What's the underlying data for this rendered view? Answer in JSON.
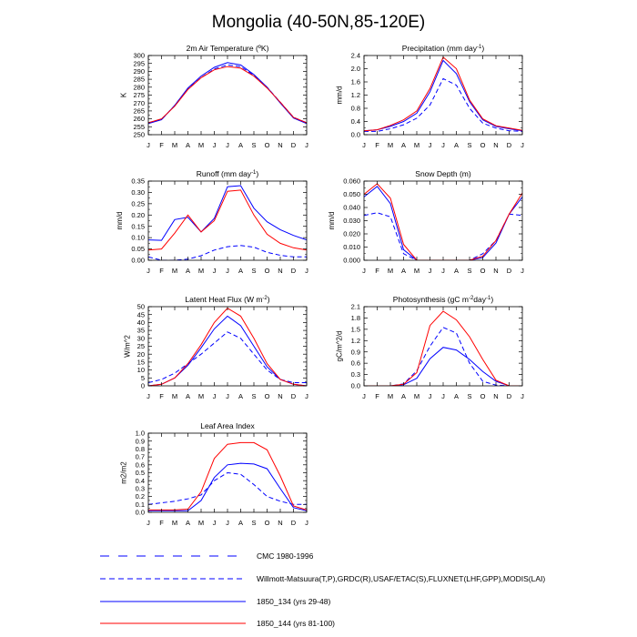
{
  "figure": {
    "title": "Mongolia (40-50N,85-120E)"
  },
  "colors": {
    "blue": "#0000ff",
    "red": "#ff0000",
    "axis": "#000000"
  },
  "legend": [
    {
      "label": "CMC 1980-1996",
      "color": "#0000ff",
      "dash": "long"
    },
    {
      "label": "Willmott-Matsuura(T,P),GRDC(R),USAF/ETAC(S),FLUXNET(LHF,GPP),MODIS(LAI)",
      "color": "#0000ff",
      "dash": "dash"
    },
    {
      "label": "1850_134 (yrs 29-48)",
      "color": "#0000ff",
      "dash": "solid"
    },
    {
      "label": "1850_144 (yrs 81-100)",
      "color": "#ff0000",
      "dash": "solid"
    }
  ],
  "chart_data": [
    {
      "type": "line",
      "title": "2m Air Temperature (ºK)",
      "ylabel": "K",
      "x": [
        "J",
        "F",
        "M",
        "A",
        "M",
        "J",
        "J",
        "A",
        "S",
        "O",
        "N",
        "D",
        "J"
      ],
      "ylim": [
        250,
        300
      ],
      "yticks": [
        "250",
        "255",
        "260",
        "265",
        "270",
        "275",
        "280",
        "285",
        "290",
        "295",
        "300"
      ],
      "series": [
        {
          "values": [
            257.5,
            259.5,
            268.5,
            279.0,
            286.0,
            291.5,
            294.0,
            293.0,
            287.5,
            280.0,
            270.5,
            261.0,
            257.5
          ],
          "color": "#0000ff",
          "style": "dash"
        },
        {
          "values": [
            257.0,
            259.5,
            268.5,
            279.5,
            287.0,
            292.5,
            295.5,
            294.0,
            288.0,
            280.0,
            270.0,
            260.5,
            257.0
          ],
          "color": "#0000ff",
          "style": "solid"
        },
        {
          "values": [
            257.5,
            260.0,
            268.0,
            278.5,
            286.0,
            291.0,
            293.0,
            292.0,
            287.0,
            279.5,
            270.5,
            261.0,
            257.5
          ],
          "color": "#ff0000",
          "style": "solid"
        }
      ]
    },
    {
      "type": "line",
      "title": "Precipitation (mm day-1)",
      "ylabel": "mm/d",
      "x": [
        "J",
        "F",
        "M",
        "A",
        "M",
        "J",
        "J",
        "A",
        "S",
        "O",
        "N",
        "D",
        "J"
      ],
      "ylim": [
        0,
        2.4
      ],
      "yticks": [
        "0.0",
        "0.4",
        "0.8",
        "1.2",
        "1.6",
        "2.0",
        "2.4"
      ],
      "series": [
        {
          "values": [
            0.1,
            0.1,
            0.18,
            0.3,
            0.5,
            0.9,
            1.7,
            1.5,
            0.8,
            0.35,
            0.2,
            0.12,
            0.1
          ],
          "color": "#0000ff",
          "style": "dash"
        },
        {
          "values": [
            0.12,
            0.15,
            0.25,
            0.4,
            0.65,
            1.3,
            2.25,
            1.85,
            1.0,
            0.45,
            0.25,
            0.18,
            0.12
          ],
          "color": "#0000ff",
          "style": "solid"
        },
        {
          "values": [
            0.12,
            0.15,
            0.28,
            0.45,
            0.72,
            1.4,
            2.35,
            2.0,
            1.05,
            0.48,
            0.27,
            0.2,
            0.13
          ],
          "color": "#ff0000",
          "style": "solid"
        }
      ]
    },
    {
      "type": "line",
      "title": "Runoff (mm day-1)",
      "ylabel": "mm/d",
      "x": [
        "J",
        "F",
        "M",
        "A",
        "M",
        "J",
        "J",
        "A",
        "S",
        "O",
        "N",
        "D",
        "J"
      ],
      "ylim": [
        0,
        0.35
      ],
      "yticks": [
        "0.00",
        "0.05",
        "0.10",
        "0.15",
        "0.20",
        "0.25",
        "0.30",
        "0.35"
      ],
      "series": [
        {
          "values": [
            0.015,
            0.0,
            0.0,
            0.005,
            0.02,
            0.045,
            0.06,
            0.065,
            0.058,
            0.035,
            0.022,
            0.015,
            0.015
          ],
          "color": "#0000ff",
          "style": "dash"
        },
        {
          "values": [
            0.09,
            0.088,
            0.18,
            0.19,
            0.125,
            0.185,
            0.325,
            0.33,
            0.23,
            0.17,
            0.135,
            0.11,
            0.09
          ],
          "color": "#0000ff",
          "style": "solid"
        },
        {
          "values": [
            0.045,
            0.05,
            0.12,
            0.2,
            0.125,
            0.175,
            0.305,
            0.31,
            0.2,
            0.115,
            0.075,
            0.055,
            0.045
          ],
          "color": "#ff0000",
          "style": "solid"
        }
      ]
    },
    {
      "type": "line",
      "title": "Snow Depth (m)",
      "ylabel": "mm/d",
      "x": [
        "J",
        "F",
        "M",
        "A",
        "M",
        "J",
        "J",
        "A",
        "S",
        "O",
        "N",
        "D",
        "J"
      ],
      "ylim": [
        0,
        0.06
      ],
      "yticks": [
        "0.000",
        "0.010",
        "0.020",
        "0.030",
        "0.040",
        "0.050",
        "0.060"
      ],
      "series": [
        {
          "values": [
            0.034,
            0.036,
            0.033,
            0.005,
            0.0,
            0.0,
            0.0,
            0.0,
            0.0,
            0.005,
            0.015,
            0.035,
            0.034
          ],
          "color": "#0000ff",
          "style": "dash"
        },
        {
          "values": [
            0.048,
            0.056,
            0.043,
            0.008,
            0.0,
            0.0,
            0.0,
            0.0,
            0.0,
            0.002,
            0.013,
            0.035,
            0.048
          ],
          "color": "#0000ff",
          "style": "solid"
        },
        {
          "values": [
            0.05,
            0.058,
            0.047,
            0.012,
            0.0,
            0.0,
            0.0,
            0.0,
            0.0,
            0.003,
            0.015,
            0.035,
            0.051
          ],
          "color": "#ff0000",
          "style": "solid"
        }
      ]
    },
    {
      "type": "line",
      "title": "Latent Heat Flux (W m-2)",
      "ylabel": "W/m^2",
      "x": [
        "J",
        "F",
        "M",
        "A",
        "M",
        "J",
        "J",
        "A",
        "S",
        "O",
        "N",
        "D",
        "J"
      ],
      "ylim": [
        0,
        50
      ],
      "yticks": [
        "0",
        "5",
        "10",
        "15",
        "20",
        "25",
        "30",
        "35",
        "40",
        "45",
        "50"
      ],
      "series": [
        {
          "values": [
            2,
            4,
            8,
            14,
            20,
            27,
            34,
            30,
            20,
            10,
            4,
            2,
            2
          ],
          "color": "#0000ff",
          "style": "dash"
        },
        {
          "values": [
            0,
            1,
            5,
            13,
            24,
            36,
            44,
            38,
            25,
            12,
            4,
            1,
            0
          ],
          "color": "#0000ff",
          "style": "solid"
        },
        {
          "values": [
            0,
            1,
            5,
            14,
            26,
            40,
            49,
            44,
            30,
            14,
            4,
            1,
            0
          ],
          "color": "#ff0000",
          "style": "solid"
        }
      ]
    },
    {
      "type": "line",
      "title": "Photosynthesis (gC m-2day-1)",
      "ylabel": "gC/m^2/d",
      "x": [
        "J",
        "F",
        "M",
        "A",
        "M",
        "J",
        "J",
        "A",
        "S",
        "O",
        "N",
        "D",
        "J"
      ],
      "ylim": [
        0,
        2.1
      ],
      "yticks": [
        "0.0",
        "0.3",
        "0.6",
        "0.9",
        "1.2",
        "1.5",
        "1.8",
        "2.1"
      ],
      "series": [
        {
          "values": [
            0.0,
            0.0,
            0.0,
            0.05,
            0.4,
            1.05,
            1.55,
            1.4,
            0.6,
            0.12,
            0.02,
            0.0,
            0.0
          ],
          "color": "#0000ff",
          "style": "dash"
        },
        {
          "values": [
            0.0,
            0.0,
            0.0,
            0.03,
            0.2,
            0.72,
            1.02,
            0.95,
            0.7,
            0.38,
            0.12,
            0.0,
            0.0
          ],
          "color": "#0000ff",
          "style": "solid"
        },
        {
          "values": [
            0.0,
            0.0,
            0.0,
            0.04,
            0.35,
            1.6,
            1.98,
            1.75,
            1.3,
            0.7,
            0.15,
            0.0,
            0.0
          ],
          "color": "#ff0000",
          "style": "solid"
        }
      ]
    },
    {
      "type": "line",
      "title": "Leaf Area Index",
      "ylabel": "m2/m2",
      "x": [
        "J",
        "F",
        "M",
        "A",
        "M",
        "J",
        "J",
        "A",
        "S",
        "O",
        "N",
        "D",
        "J"
      ],
      "ylim": [
        0,
        1.0
      ],
      "yticks": [
        "0.0",
        "0.1",
        "0.2",
        "0.3",
        "0.4",
        "0.5",
        "0.6",
        "0.7",
        "0.8",
        "0.9",
        "1.0"
      ],
      "series": [
        {
          "values": [
            0.1,
            0.12,
            0.14,
            0.17,
            0.22,
            0.4,
            0.5,
            0.48,
            0.35,
            0.2,
            0.14,
            0.1,
            0.1
          ],
          "color": "#0000ff",
          "style": "dash"
        },
        {
          "values": [
            0.02,
            0.02,
            0.02,
            0.02,
            0.15,
            0.44,
            0.6,
            0.62,
            0.61,
            0.55,
            0.3,
            0.06,
            0.02
          ],
          "color": "#0000ff",
          "style": "solid"
        },
        {
          "values": [
            0.03,
            0.03,
            0.03,
            0.04,
            0.26,
            0.68,
            0.86,
            0.88,
            0.88,
            0.79,
            0.46,
            0.08,
            0.03
          ],
          "color": "#ff0000",
          "style": "solid"
        }
      ]
    }
  ]
}
